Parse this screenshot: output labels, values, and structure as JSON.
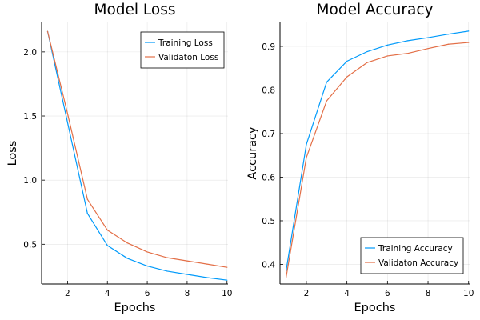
{
  "chart_data": [
    {
      "type": "line",
      "title": "Model Loss",
      "xlabel": "Epochs",
      "ylabel": "Loss",
      "xlim": [
        0.7,
        10.05
      ],
      "ylim": [
        0.19,
        2.23
      ],
      "xticks": [
        2,
        4,
        6,
        8,
        10
      ],
      "yticks": [
        0.5,
        1.0,
        1.5,
        2.0
      ],
      "ytick_labels": [
        "0.5",
        "1.0",
        "1.5",
        "2.0"
      ],
      "grid": true,
      "legend_position": "top-right",
      "x": [
        1,
        2,
        3,
        4,
        5,
        6,
        7,
        8,
        9,
        10
      ],
      "series": [
        {
          "name": "Training Loss",
          "color": "#009AFA",
          "values": [
            2.16,
            1.45,
            0.74,
            0.49,
            0.39,
            0.33,
            0.29,
            0.265,
            0.24,
            0.22
          ]
        },
        {
          "name": "Validaton Loss",
          "color": "#E36F47",
          "values": [
            2.16,
            1.52,
            0.85,
            0.61,
            0.51,
            0.44,
            0.395,
            0.37,
            0.345,
            0.32
          ]
        }
      ]
    },
    {
      "type": "line",
      "title": "Model Accuracy",
      "xlabel": "Epochs",
      "ylabel": "Accuracy",
      "xlim": [
        0.7,
        10.05
      ],
      "ylim": [
        0.355,
        0.955
      ],
      "xticks": [
        2,
        4,
        6,
        8,
        10
      ],
      "yticks": [
        0.4,
        0.5,
        0.6,
        0.7,
        0.8,
        0.9
      ],
      "ytick_labels": [
        "0.4",
        "0.5",
        "0.6",
        "0.7",
        "0.8",
        "0.9"
      ],
      "grid": true,
      "legend_position": "bottom-right",
      "x": [
        1,
        2,
        3,
        4,
        5,
        6,
        7,
        8,
        9,
        10
      ],
      "series": [
        {
          "name": "Training Accuracy",
          "color": "#009AFA",
          "values": [
            0.385,
            0.675,
            0.818,
            0.866,
            0.888,
            0.903,
            0.913,
            0.92,
            0.928,
            0.935
          ]
        },
        {
          "name": "Validaton Accuracy",
          "color": "#E36F47",
          "values": [
            0.37,
            0.645,
            0.775,
            0.83,
            0.863,
            0.878,
            0.884,
            0.895,
            0.905,
            0.909
          ]
        }
      ]
    }
  ]
}
